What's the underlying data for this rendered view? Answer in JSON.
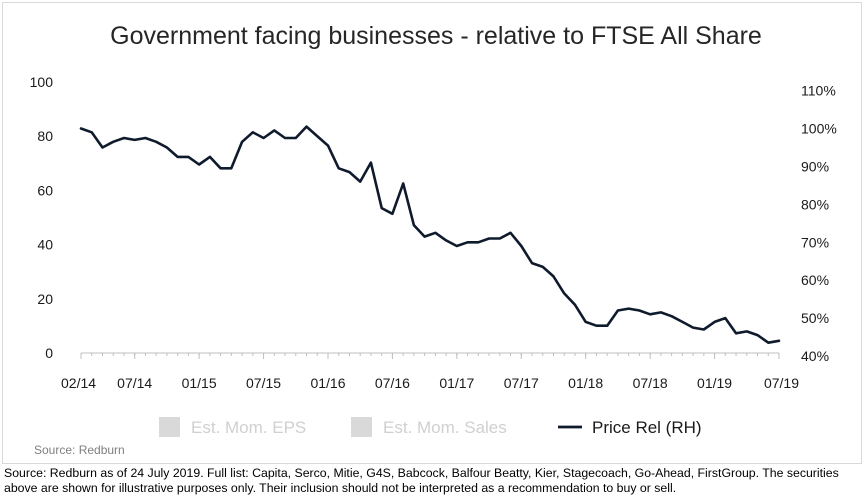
{
  "chart_data": {
    "type": "line",
    "title": "Government facing businesses - relative to FTSE All Share",
    "x_tick_labels": [
      "02/14",
      "07/14",
      "01/15",
      "07/15",
      "01/16",
      "07/16",
      "01/17",
      "07/17",
      "01/18",
      "07/18",
      "01/19",
      "07/19"
    ],
    "x_tick_month_index": [
      0,
      5,
      11,
      17,
      23,
      29,
      35,
      41,
      47,
      53,
      59,
      65
    ],
    "y_left_ticks": [
      "0",
      "20",
      "40",
      "60",
      "80",
      "100"
    ],
    "y_left_ylim": [
      0,
      100
    ],
    "y_right_ticks": [
      "40%",
      "50%",
      "60%",
      "70%",
      "80%",
      "90%",
      "100%",
      "110%"
    ],
    "y_right_ylim": [
      0.4,
      1.12
    ],
    "grid": false,
    "legend_position": "bottom",
    "legend": [
      {
        "label": "Est. Mom. EPS",
        "type": "box",
        "color": "#d9d9d9"
      },
      {
        "label": "Est. Mom. Sales",
        "type": "box",
        "color": "#d9d9d9"
      },
      {
        "label": "Price Rel (RH)",
        "type": "line",
        "color": "#0f1b2d"
      }
    ],
    "series": [
      {
        "name": "Price Rel (RH)",
        "axis": "right",
        "color": "#0f1b2d",
        "x_month_index": [
          0,
          1,
          2,
          3,
          4,
          5,
          6,
          7,
          8,
          9,
          10,
          11,
          12,
          13,
          14,
          15,
          16,
          17,
          18,
          19,
          20,
          21,
          22,
          23,
          24,
          25,
          26,
          27,
          28,
          29,
          30,
          31,
          32,
          33,
          34,
          35,
          36,
          37,
          38,
          39,
          40,
          41,
          42,
          43,
          44,
          45,
          46,
          47,
          48,
          49,
          50,
          51,
          52,
          53,
          54,
          55,
          56,
          57,
          58,
          59,
          60,
          61,
          62,
          63,
          64,
          65
        ],
        "values": [
          1.0,
          0.99,
          0.95,
          0.965,
          0.975,
          0.97,
          0.975,
          0.965,
          0.95,
          0.925,
          0.925,
          0.905,
          0.925,
          0.895,
          0.895,
          0.965,
          0.99,
          0.975,
          0.995,
          0.975,
          0.975,
          1.005,
          0.98,
          0.955,
          0.895,
          0.885,
          0.86,
          0.91,
          0.79,
          0.775,
          0.855,
          0.745,
          0.715,
          0.725,
          0.705,
          0.69,
          0.7,
          0.7,
          0.71,
          0.71,
          0.725,
          0.69,
          0.645,
          0.635,
          0.61,
          0.565,
          0.535,
          0.49,
          0.48,
          0.48,
          0.52,
          0.525,
          0.52,
          0.51,
          0.515,
          0.505,
          0.49,
          0.475,
          0.47,
          0.49,
          0.5,
          0.46,
          0.465,
          0.455,
          0.435,
          0.44
        ]
      }
    ]
  },
  "source_label": "Source:  Redburn",
  "footnote": "Source: Redburn as of 24 July 2019. Full list: Capita, Serco, Mitie, G4S, Babcock, Balfour Beatty, Kier, Stagecoach, Go-Ahead, FirstGroup. The securities above are shown for illustrative purposes only. Their inclusion should not be interpreted as a recommendation to buy or sell."
}
